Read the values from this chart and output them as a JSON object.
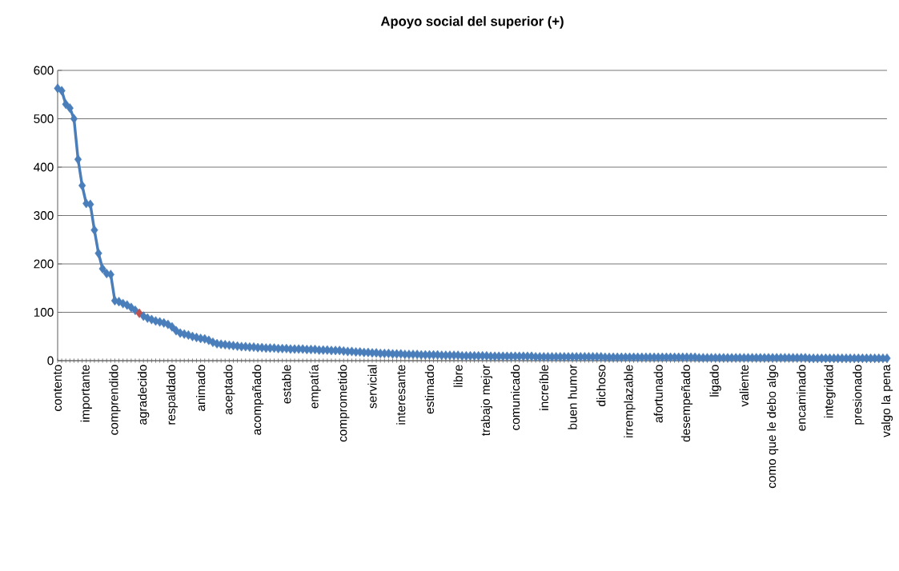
{
  "chart_data": {
    "type": "line",
    "title": "Apoyo social del superior (+)",
    "categories": [
      "contento",
      null,
      null,
      null,
      null,
      null,
      null,
      "importante",
      null,
      null,
      null,
      null,
      null,
      null,
      "comprendido",
      null,
      null,
      null,
      null,
      null,
      null,
      "agradecido",
      null,
      null,
      null,
      null,
      null,
      null,
      "respaldado",
      null,
      null,
      null,
      null,
      null,
      null,
      "animado",
      null,
      null,
      null,
      null,
      null,
      null,
      "aceptado",
      null,
      null,
      null,
      null,
      null,
      null,
      "acompañado",
      null,
      null,
      null,
      null,
      null,
      null,
      "estable",
      null,
      null,
      null,
      null,
      null,
      null,
      "empatía",
      null,
      null,
      null,
      null,
      null,
      null,
      "comprometido",
      null,
      null,
      null,
      null,
      null,
      null,
      "servicial",
      null,
      null,
      null,
      null,
      null,
      null,
      "interesante",
      null,
      null,
      null,
      null,
      null,
      null,
      "estimado",
      null,
      null,
      null,
      null,
      null,
      null,
      "libre",
      null,
      null,
      null,
      null,
      null,
      null,
      "trabajo mejor",
      null,
      null,
      null,
      null,
      null,
      null,
      "comunicado",
      null,
      null,
      null,
      null,
      null,
      null,
      "increíble",
      null,
      null,
      null,
      null,
      null,
      null,
      "buen humor",
      null,
      null,
      null,
      null,
      null,
      null,
      "dichoso",
      null,
      null,
      null,
      null,
      null,
      null,
      "irremplazable",
      null,
      null,
      null,
      null,
      null,
      null,
      "afortunado",
      null,
      null,
      null,
      null,
      null,
      null,
      "desempeñado",
      null,
      null,
      null,
      null,
      null,
      null,
      "ligado",
      null,
      null,
      null,
      null,
      null,
      null,
      "valiente",
      null,
      null,
      null,
      null,
      null,
      null,
      "como que le debo algo",
      null,
      null,
      null,
      null,
      null,
      null,
      "encaminado",
      null,
      null,
      null,
      null,
      null,
      null,
      "integridad",
      null,
      null,
      null,
      null,
      null,
      null,
      "presionado",
      null,
      null,
      null,
      null,
      null,
      null,
      "valgo la pena"
    ],
    "values": [
      563,
      558,
      530,
      522,
      500,
      416,
      362,
      325,
      323,
      270,
      222,
      190,
      180,
      178,
      124,
      122,
      118,
      115,
      110,
      104,
      98,
      92,
      88,
      85,
      82,
      80,
      78,
      75,
      70,
      62,
      57,
      55,
      53,
      50,
      48,
      46,
      45,
      42,
      38,
      35,
      34,
      33,
      32,
      31,
      30,
      29,
      29,
      28,
      28,
      27,
      27,
      26,
      26,
      26,
      25,
      25,
      25,
      24,
      24,
      24,
      24,
      23,
      23,
      23,
      22,
      22,
      22,
      21,
      21,
      21,
      20,
      19,
      19,
      18,
      18,
      17,
      17,
      16,
      16,
      15,
      15,
      15,
      14,
      14,
      14,
      13,
      13,
      13,
      13,
      12,
      12,
      12,
      12,
      12,
      11,
      11,
      11,
      11,
      11,
      10,
      10,
      10,
      10,
      10,
      10,
      10,
      9,
      9,
      9,
      9,
      9,
      9,
      9,
      9,
      9,
      9,
      9,
      8,
      8,
      8,
      8,
      8,
      8,
      8,
      8,
      8,
      8,
      8,
      8,
      8,
      8,
      8,
      8,
      8,
      7,
      7,
      7,
      7,
      7,
      7,
      7,
      7,
      7,
      7,
      7,
      7,
      7,
      7,
      7,
      7,
      7,
      7,
      7,
      7,
      7,
      7,
      7,
      6,
      6,
      6,
      6,
      6,
      6,
      6,
      6,
      6,
      6,
      6,
      6,
      6,
      6,
      6,
      6,
      6,
      6,
      6,
      6,
      6,
      6,
      6,
      6,
      6,
      6,
      6,
      5,
      5,
      5,
      5,
      5,
      5,
      5,
      5,
      5,
      5,
      5,
      5,
      5,
      5,
      5,
      5,
      5,
      5,
      5,
      5
    ],
    "color": "#4a7ebb",
    "colors": [
      "#4a7ebb",
      "#4a7ebb",
      "#4a7ebb",
      "#4a7ebb",
      "#4a7ebb",
      "#4a7ebb",
      "#4a7ebb",
      "#4a7ebb",
      "#4a7ebb",
      "#4a7ebb",
      "#4a7ebb",
      "#4a7ebb",
      "#4a7ebb",
      "#4a7ebb",
      "#4a7ebb",
      "#4a7ebb",
      "#4a7ebb",
      "#4a7ebb",
      "#4a7ebb",
      "#4a7ebb",
      "#c0504d",
      "#4a7ebb",
      "#4a7ebb",
      "#4a7ebb",
      "#4a7ebb",
      "#4a7ebb",
      "#4a7ebb",
      "#4a7ebb",
      "#4a7ebb",
      "#4a7ebb",
      "#4a7ebb",
      "#4a7ebb",
      "#4a7ebb",
      "#4a7ebb",
      "#4a7ebb",
      "#4a7ebb",
      "#4a7ebb",
      "#4a7ebb",
      "#4a7ebb",
      "#4a7ebb",
      "#4a7ebb",
      "#4a7ebb",
      "#4a7ebb",
      "#4a7ebb",
      "#4a7ebb",
      "#4a7ebb",
      "#4a7ebb",
      "#4a7ebb",
      "#4a7ebb",
      "#4a7ebb",
      "#4a7ebb",
      "#4a7ebb",
      "#4a7ebb",
      "#4a7ebb",
      "#4a7ebb",
      "#4a7ebb",
      "#4a7ebb",
      "#4a7ebb",
      "#4a7ebb",
      "#4a7ebb",
      "#4a7ebb",
      "#4a7ebb",
      "#4a7ebb",
      "#4a7ebb",
      "#4a7ebb",
      "#4a7ebb",
      "#4a7ebb",
      "#4a7ebb",
      "#4a7ebb",
      "#4a7ebb",
      "#4a7ebb",
      "#4a7ebb",
      "#4a7ebb",
      "#4a7ebb",
      "#4a7ebb",
      "#4a7ebb",
      "#4a7ebb",
      "#4a7ebb",
      "#4a7ebb",
      "#4a7ebb",
      "#4a7ebb",
      "#4a7ebb",
      "#4a7ebb",
      "#4a7ebb",
      "#4a7ebb",
      "#4a7ebb",
      "#4a7ebb",
      "#4a7ebb",
      "#4a7ebb",
      "#4a7ebb",
      "#4a7ebb",
      "#4a7ebb",
      "#4a7ebb",
      "#4a7ebb",
      "#4a7ebb",
      "#4a7ebb",
      "#4a7ebb",
      "#4a7ebb",
      "#4a7ebb",
      "#4a7ebb",
      "#4a7ebb",
      "#4a7ebb",
      "#4a7ebb",
      "#4a7ebb",
      "#4a7ebb",
      "#4a7ebb",
      "#4a7ebb",
      "#4a7ebb",
      "#4a7ebb",
      "#4a7ebb",
      "#4a7ebb",
      "#4a7ebb",
      "#4a7ebb",
      "#4a7ebb",
      "#4a7ebb",
      "#4a7ebb",
      "#4a7ebb",
      "#4a7ebb",
      "#4a7ebb",
      "#4a7ebb",
      "#4a7ebb",
      "#4a7ebb",
      "#4a7ebb",
      "#4a7ebb",
      "#4a7ebb",
      "#4a7ebb",
      "#4a7ebb",
      "#4a7ebb",
      "#4a7ebb",
      "#4a7ebb",
      "#4a7ebb",
      "#4a7ebb",
      "#4a7ebb",
      "#4a7ebb",
      "#4a7ebb",
      "#4a7ebb",
      "#4a7ebb",
      "#4a7ebb",
      "#4a7ebb",
      "#4a7ebb",
      "#4a7ebb",
      "#4a7ebb",
      "#4a7ebb",
      "#4a7ebb",
      "#4a7ebb",
      "#4a7ebb",
      "#4a7ebb",
      "#4a7ebb",
      "#4a7ebb",
      "#4a7ebb",
      "#4a7ebb",
      "#4a7ebb",
      "#4a7ebb",
      "#4a7ebb",
      "#4a7ebb",
      "#4a7ebb",
      "#4a7ebb",
      "#4a7ebb",
      "#4a7ebb",
      "#4a7ebb",
      "#4a7ebb",
      "#4a7ebb",
      "#4a7ebb",
      "#4a7ebb",
      "#4a7ebb",
      "#4a7ebb",
      "#4a7ebb",
      "#4a7ebb",
      "#4a7ebb",
      "#4a7ebb",
      "#4a7ebb",
      "#4a7ebb",
      "#4a7ebb",
      "#4a7ebb",
      "#4a7ebb",
      "#4a7ebb",
      "#4a7ebb",
      "#4a7ebb",
      "#4a7ebb",
      "#4a7ebb",
      "#4a7ebb",
      "#4a7ebb",
      "#4a7ebb",
      "#4a7ebb",
      "#4a7ebb",
      "#4a7ebb",
      "#4a7ebb",
      "#4a7ebb",
      "#4a7ebb",
      "#4a7ebb",
      "#4a7ebb",
      "#4a7ebb",
      "#4a7ebb",
      "#4a7ebb",
      "#4a7ebb",
      "#4a7ebb",
      "#4a7ebb",
      "#4a7ebb",
      "#4a7ebb",
      "#4a7ebb",
      "#4a7ebb",
      "#4a7ebb",
      "#4a7ebb",
      "#4a7ebb"
    ],
    "ylim": [
      0,
      600
    ],
    "yticks": [
      0,
      100,
      200,
      300,
      400,
      500,
      600
    ],
    "grid": "y",
    "marker": "diamond"
  }
}
